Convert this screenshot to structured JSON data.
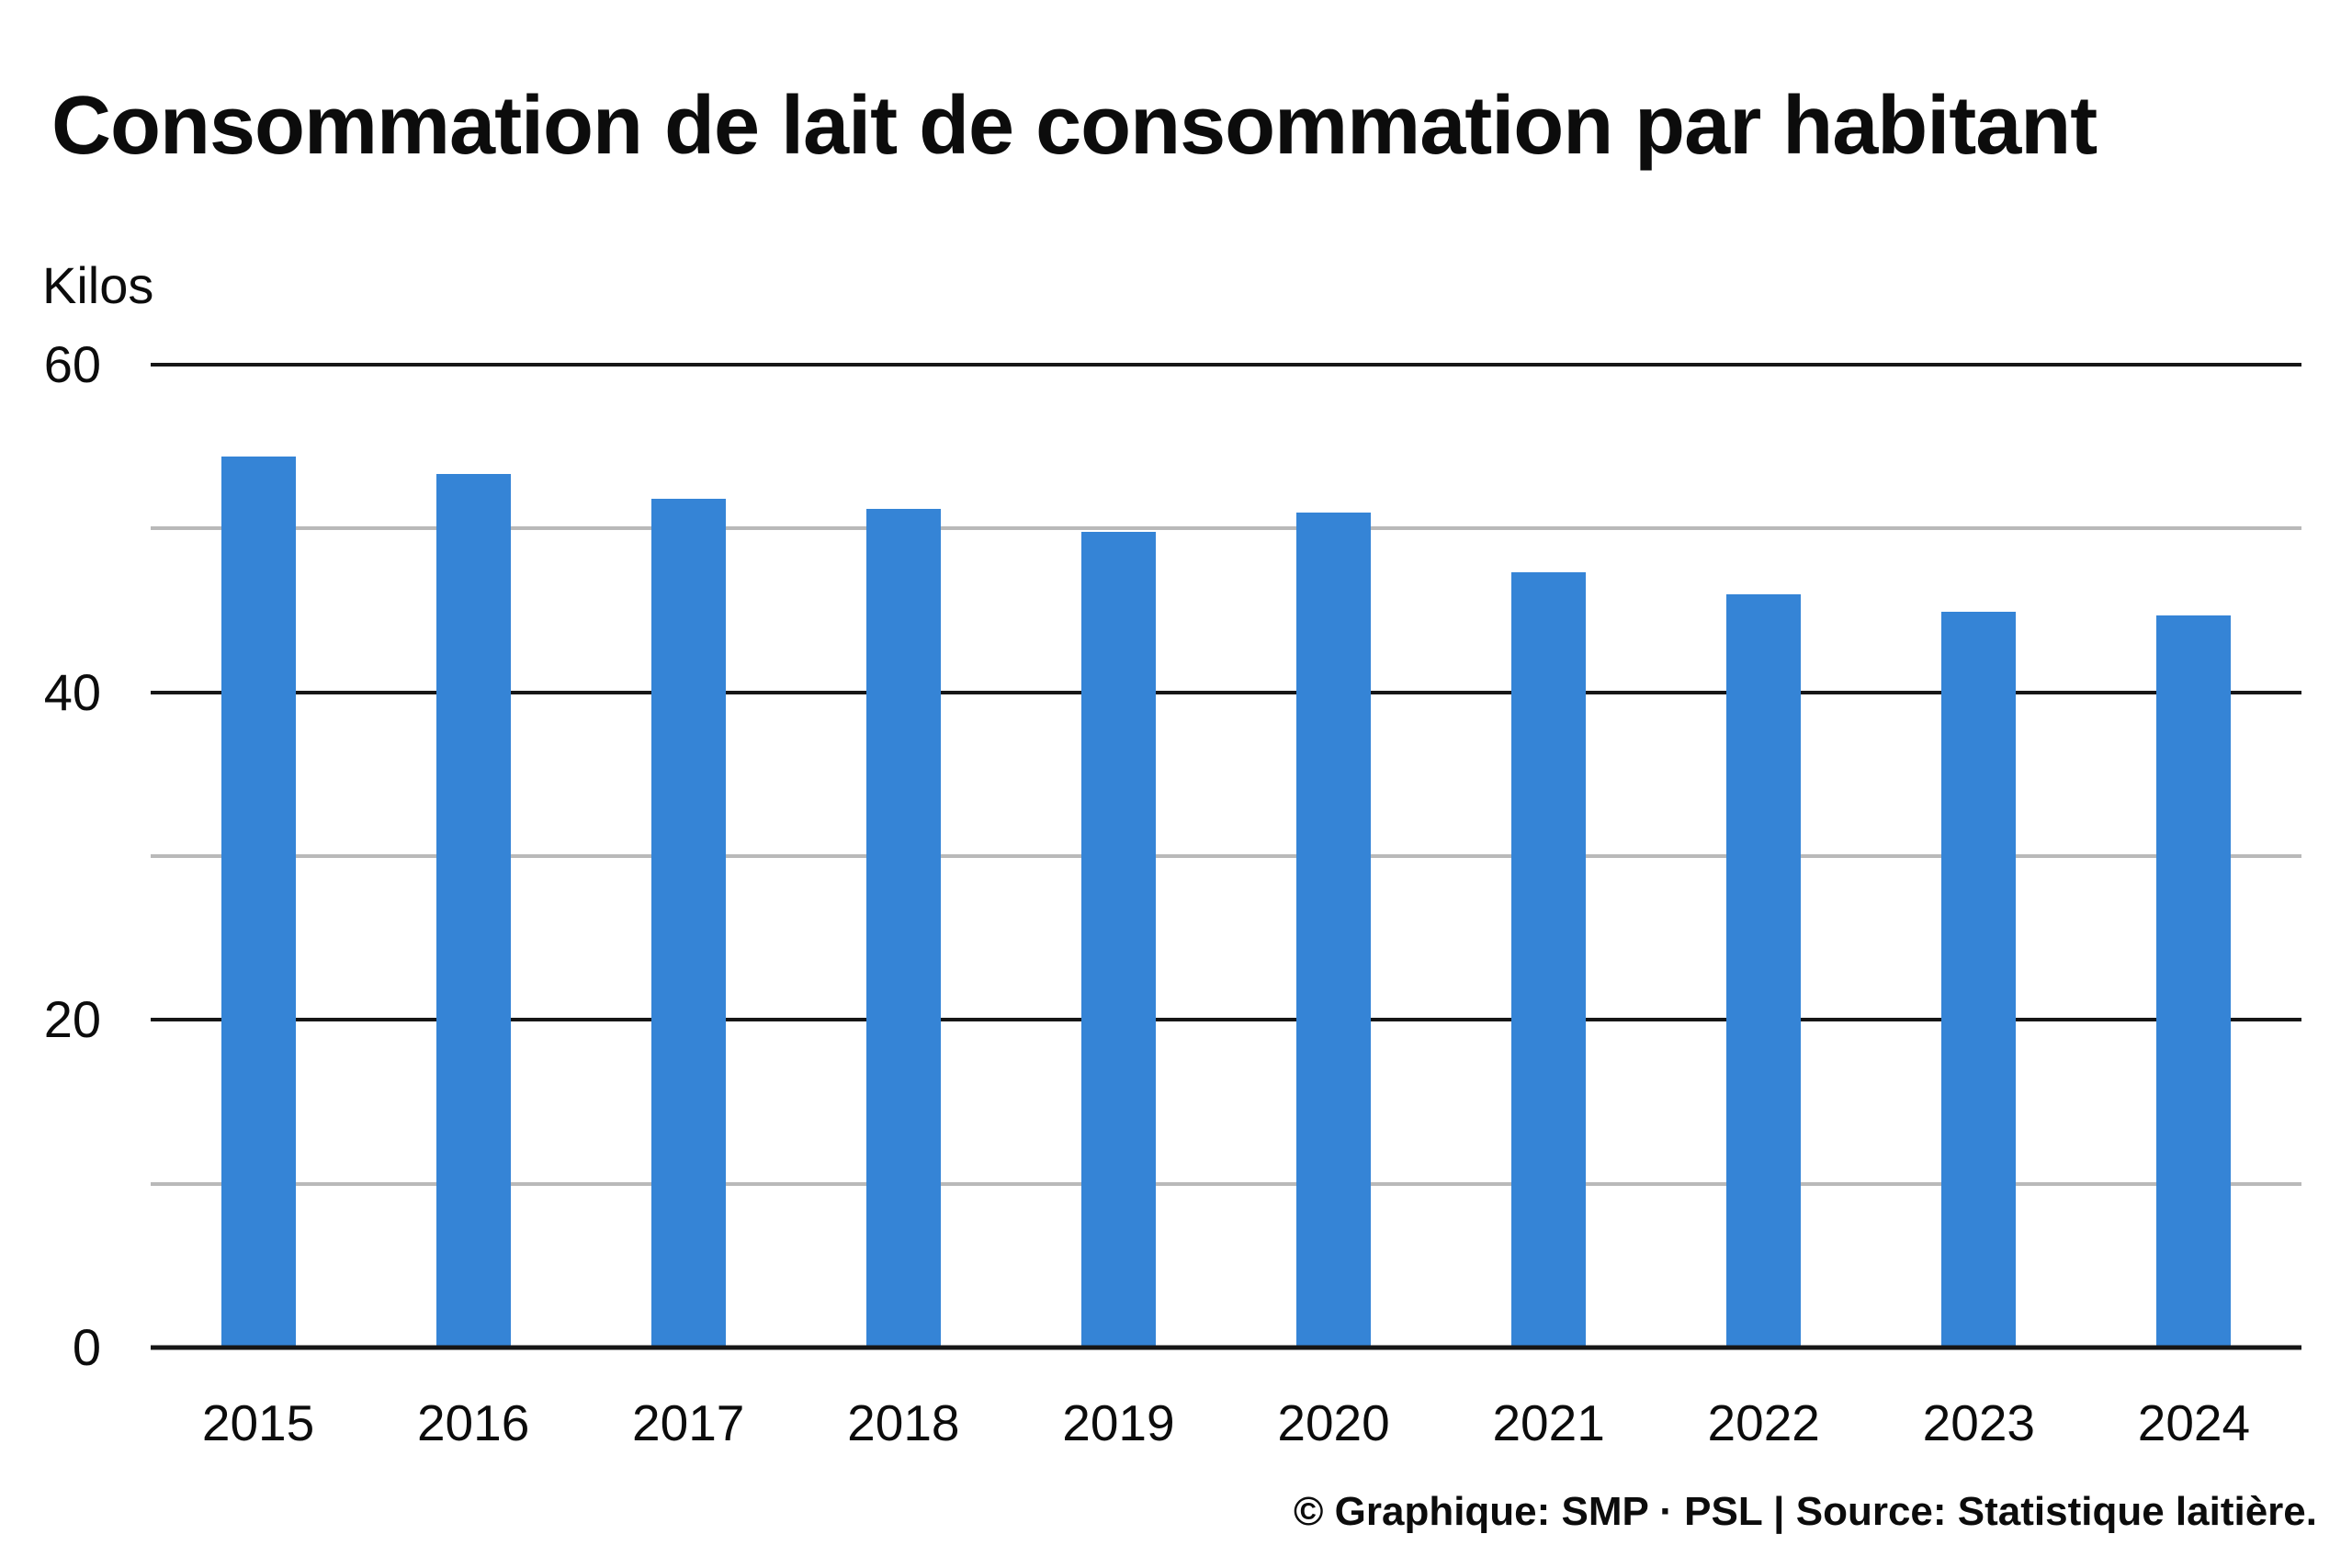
{
  "title": "Consommation de lait de consommation par habitant",
  "footer": "© Graphique: SMP · PSL | Source: Statistique laitière.",
  "chart_data": {
    "type": "bar",
    "title": "Consommation de lait de consommation par habitant",
    "ylabel": "Kilos",
    "xlabel": "",
    "categories": [
      "2015",
      "2016",
      "2017",
      "2018",
      "2019",
      "2020",
      "2021",
      "2022",
      "2023",
      "2024"
    ],
    "values": [
      54.4,
      53.3,
      51.8,
      51.2,
      49.8,
      51.0,
      47.3,
      46.0,
      44.9,
      44.7
    ],
    "ylim": [
      0,
      60
    ],
    "yticks": [
      0,
      20,
      40,
      60
    ],
    "minor_gridlines": [
      10,
      30,
      50
    ],
    "grid": true,
    "legend": "none",
    "bar_color": "#3584d6",
    "major_grid_color": "#161616",
    "minor_grid_color": "#b9b9b9",
    "text_color": "#0c0c0c",
    "source_note": "© Graphique: SMP · PSL | Source: Statistique laitière."
  }
}
